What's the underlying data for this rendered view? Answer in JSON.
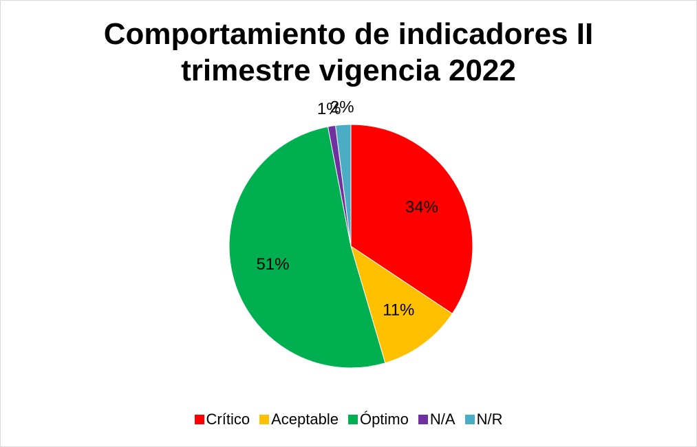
{
  "chart_data": {
    "type": "pie",
    "title": "Comportamiento de indicadores II trimestre vigencia 2022",
    "categories": [
      "Crítico",
      "Aceptable",
      "Óptimo",
      "N/A",
      "N/R"
    ],
    "values": [
      34,
      11,
      51,
      1,
      2
    ],
    "value_labels": [
      "34%",
      "11%",
      "51%",
      "1%",
      "2%"
    ],
    "colors": [
      "#ff0000",
      "#ffc000",
      "#00b050",
      "#7030a0",
      "#4bacc6"
    ],
    "legend": "bottom"
  }
}
